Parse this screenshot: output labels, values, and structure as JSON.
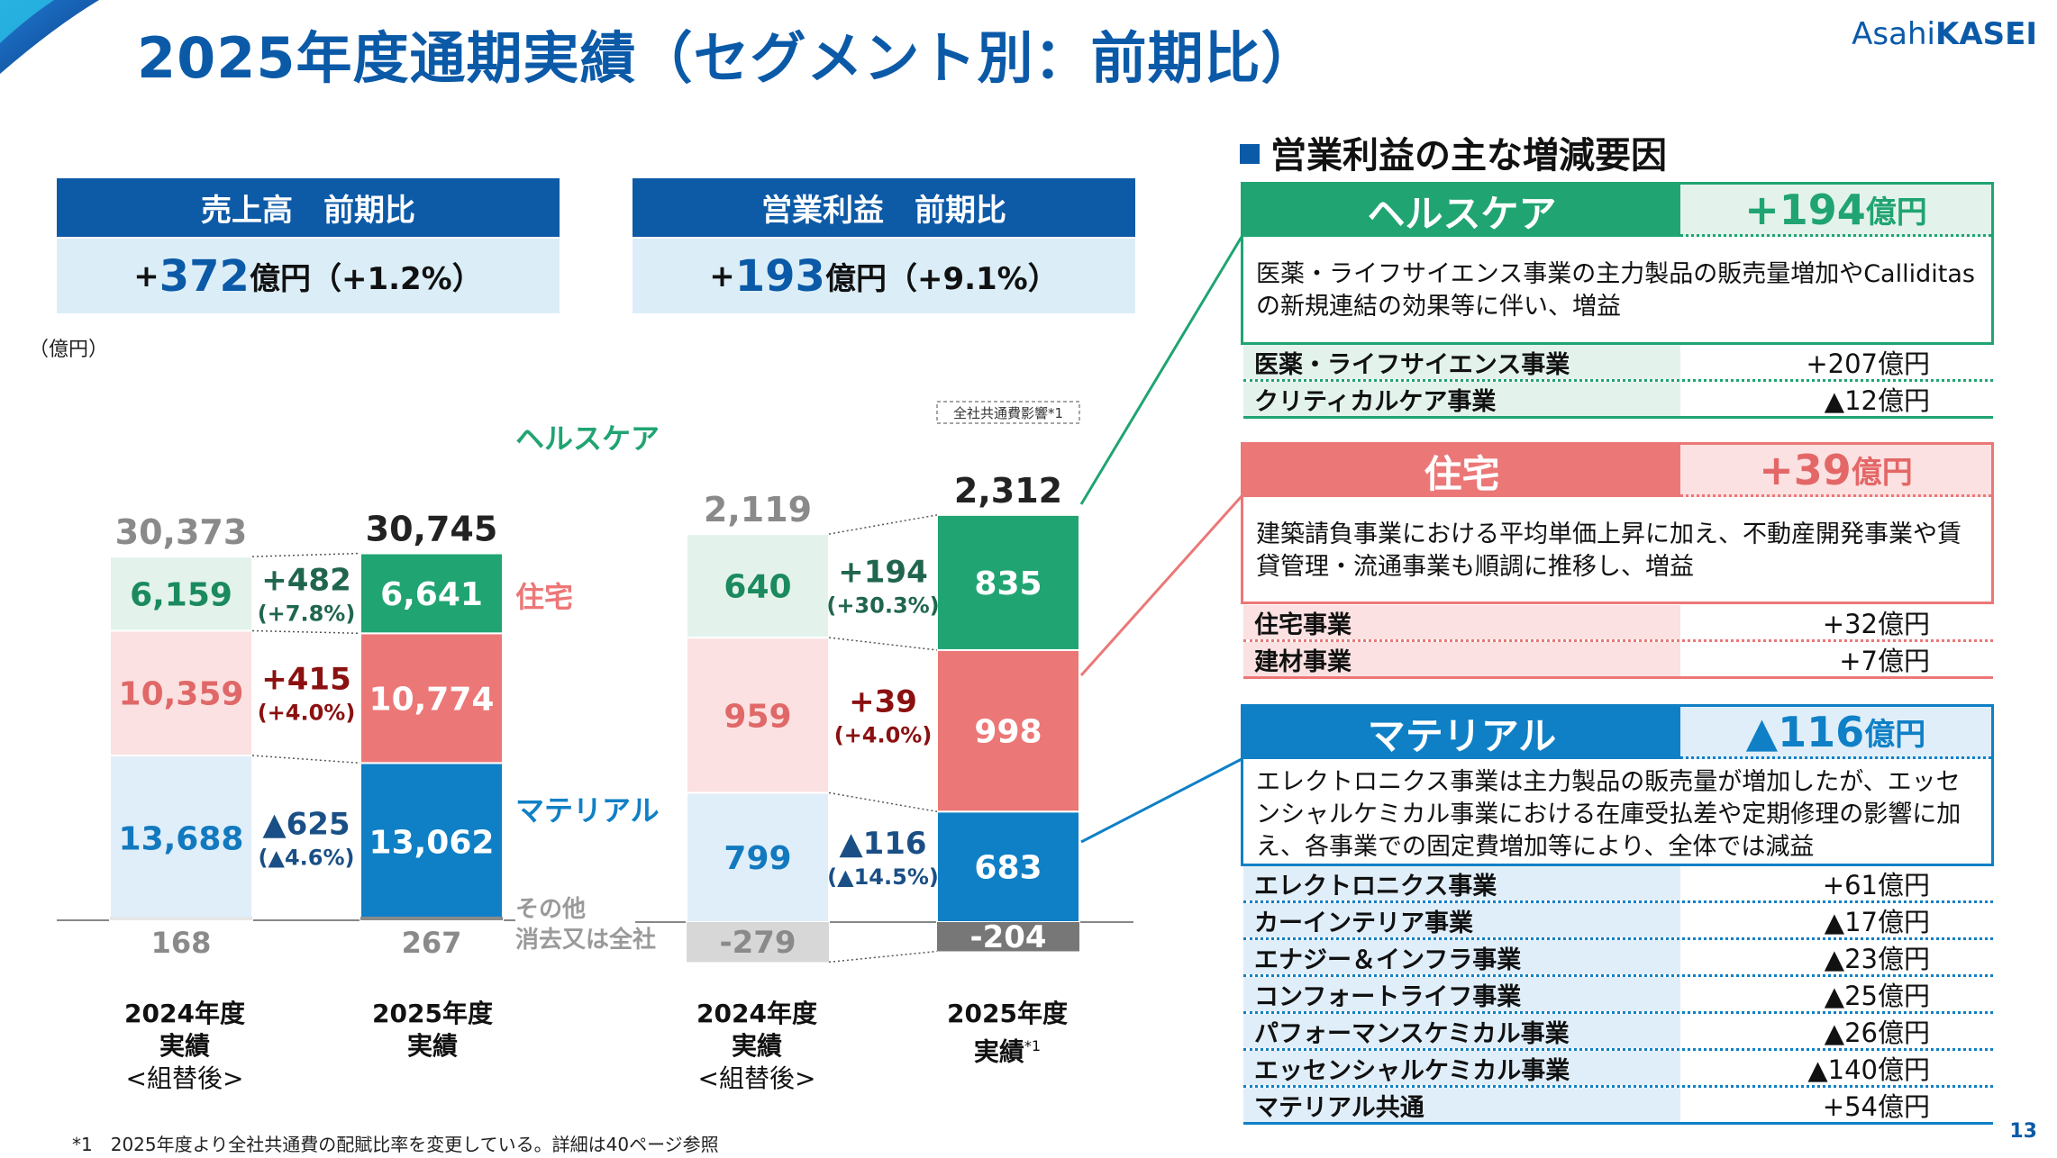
{
  "title": "2025年度通期実績（セグメント別：前期比）",
  "logo": {
    "part1": "Asahi",
    "part2": "KASEI"
  },
  "unit_label": "（億円）",
  "colors": {
    "health": "#20a472",
    "health_light": "#e3f3ec",
    "health_text": "#1b8a5e",
    "housing": "#ec7777",
    "housing_light": "#fbe1e1",
    "housing_text": "#e06868",
    "material": "#0f80c6",
    "material_light": "#e0eef9",
    "material_text": "#1279bf",
    "other": "#9a9a9a",
    "delta_dark": "#8b1010",
    "delta_green": "#20664e",
    "delta_blue": "#1a4f86",
    "brand_blue": "#0b5aa8"
  },
  "left_panel": {
    "header": "売上高　前期比",
    "summary_sign": "+",
    "summary_value": "372",
    "summary_rest": "億円（+1.2%）"
  },
  "middle_panel": {
    "header": "営業利益　前期比",
    "summary_sign": "+",
    "summary_value": "193",
    "summary_rest": "億円（+9.1%）"
  },
  "chart_data": [
    {
      "type": "bar",
      "title": "売上高　前期比",
      "ylabel": "（億円）",
      "categories": [
        "2024年度 実績 <組替後>",
        "2025年度 実績"
      ],
      "totals": [
        "30,373",
        "30,745"
      ],
      "series": [
        {
          "name": "マテリアル",
          "values": [
            13688,
            13062
          ],
          "labels": [
            "13,688",
            "13,062"
          ],
          "delta": "▲625",
          "delta_pct": "(▲4.6%)"
        },
        {
          "name": "住宅",
          "values": [
            10359,
            10774
          ],
          "labels": [
            "10,359",
            "10,774"
          ],
          "delta": "+415",
          "delta_pct": "(+4.0%)"
        },
        {
          "name": "ヘルスケア",
          "values": [
            6159,
            6641
          ],
          "labels": [
            "6,159",
            "6,641"
          ],
          "delta": "+482",
          "delta_pct": "(+7.8%)"
        },
        {
          "name": "その他 消去又は全社",
          "values": [
            168,
            267
          ],
          "labels": [
            "168",
            "267"
          ]
        }
      ]
    },
    {
      "type": "bar",
      "title": "営業利益　前期比",
      "categories": [
        "2024年度 実績 <組替後>",
        "2025年度 実績*1"
      ],
      "totals": [
        "2,119",
        "2,312"
      ],
      "note_badge": "全社共通費影響*1",
      "series": [
        {
          "name": "マテリアル",
          "values": [
            799,
            683
          ],
          "labels": [
            "799",
            "683"
          ],
          "delta": "▲116",
          "delta_pct": "(▲14.5%)"
        },
        {
          "name": "住宅",
          "values": [
            959,
            998
          ],
          "labels": [
            "959",
            "998"
          ],
          "delta": "+39",
          "delta_pct": "(+4.0%)"
        },
        {
          "name": "ヘルスケア",
          "values": [
            640,
            835
          ],
          "labels": [
            "640",
            "835"
          ],
          "delta": "+194",
          "delta_pct": "(+30.3%)"
        },
        {
          "name": "その他 消去又は全社",
          "values": [
            -279,
            -204
          ],
          "labels": [
            "-279",
            "-204"
          ]
        }
      ]
    }
  ],
  "left_chart_labels": {
    "x1": {
      "line1": "2024年度",
      "line2": "実績",
      "line3": "<組替後>"
    },
    "x2": {
      "line1": "2025年度",
      "line2": "実績"
    },
    "seg_health": "ヘルスケア",
    "seg_housing": "住宅",
    "seg_material": "マテリアル",
    "other_line1": "その他",
    "other_line2": "消去又は全社"
  },
  "mid_chart_labels": {
    "x1": {
      "line1": "2024年度",
      "line2": "実績",
      "line3": "<組替後>"
    },
    "x2": {
      "line1": "2025年度",
      "line2": "実績",
      "sup": "*1"
    }
  },
  "factors": {
    "heading": "営業利益の主な増減要因",
    "health": {
      "name": "ヘルスケア",
      "delta": "+194",
      "delta_unit": "億円",
      "description": "医薬・ライフサイエンス事業の主力製品の販売量増加やCalliditasの新規連結の効果等に伴い、増益",
      "rows": [
        {
          "name": "医薬・ライフサイエンス事業",
          "value": "+207億円"
        },
        {
          "name": "クリティカルケア事業",
          "value": "▲12億円"
        }
      ]
    },
    "housing": {
      "name": "住宅",
      "delta": "+39",
      "delta_unit": "億円",
      "description": "建築請負事業における平均単価上昇に加え、不動産開発事業や賃貸管理・流通事業も順調に推移し、増益",
      "rows": [
        {
          "name": "住宅事業",
          "value": "+32億円"
        },
        {
          "name": "建材事業",
          "value": "+7億円"
        }
      ]
    },
    "material": {
      "name": "マテリアル",
      "delta": "▲116",
      "delta_unit": "億円",
      "description": "エレクトロニクス事業は主力製品の販売量が増加したが、エッセンシャルケミカル事業における在庫受払差や定期修理の影響に加え、各事業での固定費増加等により、全体では減益",
      "rows": [
        {
          "name": "エレクトロニクス事業",
          "value": "+61億円"
        },
        {
          "name": "カーインテリア事業",
          "value": "▲17億円"
        },
        {
          "name": "エナジー＆インフラ事業",
          "value": "▲23億円"
        },
        {
          "name": "コンフォートライフ事業",
          "value": "▲25億円"
        },
        {
          "name": "パフォーマンスケミカル事業",
          "value": "▲26億円"
        },
        {
          "name": "エッセンシャルケミカル事業",
          "value": "▲140億円"
        },
        {
          "name": "マテリアル共通",
          "value": "+54億円"
        }
      ]
    }
  },
  "footnote": "*1　2025年度より全社共通費の配賦比率を変更している。詳細は40ページ参照",
  "page_number": "13"
}
